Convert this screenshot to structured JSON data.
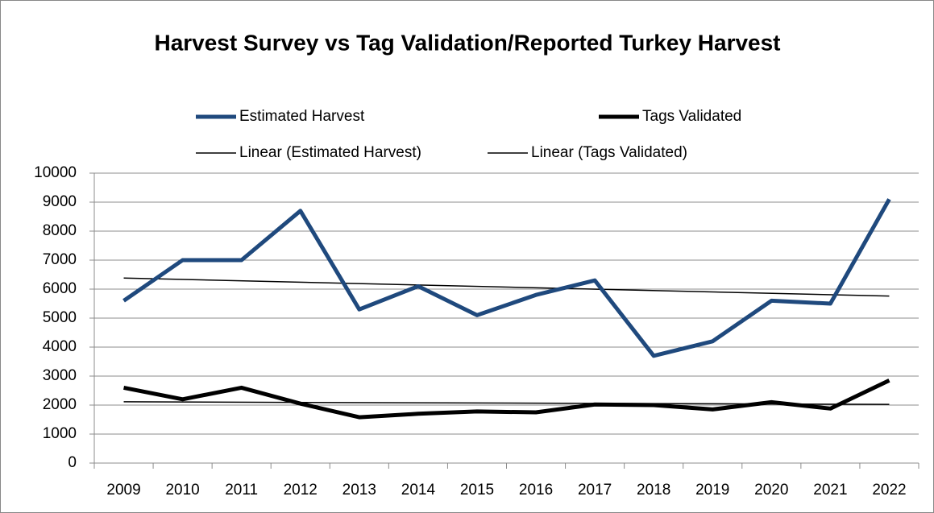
{
  "chart_data": {
    "type": "line",
    "title": "Harvest Survey vs Tag Validation/Reported Turkey Harvest",
    "categories": [
      "2009",
      "2010",
      "2011",
      "2012",
      "2013",
      "2014",
      "2015",
      "2016",
      "2017",
      "2018",
      "2019",
      "2020",
      "2021",
      "2022"
    ],
    "series": [
      {
        "name": "Estimated Harvest",
        "color": "#1f497d",
        "values": [
          5600,
          7000,
          7000,
          8700,
          5300,
          6100,
          5100,
          5800,
          6300,
          3700,
          4200,
          5600,
          5500,
          9100
        ],
        "trendline": {
          "name": "Linear (Estimated Harvest)",
          "color": "#000000"
        }
      },
      {
        "name": "Tags Validated",
        "color": "#000000",
        "values": [
          2600,
          2200,
          2600,
          2050,
          1580,
          1700,
          1780,
          1750,
          2020,
          2000,
          1850,
          2100,
          1880,
          2850
        ],
        "trendline": {
          "name": "Linear (Tags Validated)",
          "color": "#000000"
        }
      }
    ],
    "ylim": [
      0,
      10000
    ],
    "yticks": [
      0,
      1000,
      2000,
      3000,
      4000,
      5000,
      6000,
      7000,
      8000,
      9000,
      10000
    ],
    "grid": true,
    "legend": "top"
  }
}
